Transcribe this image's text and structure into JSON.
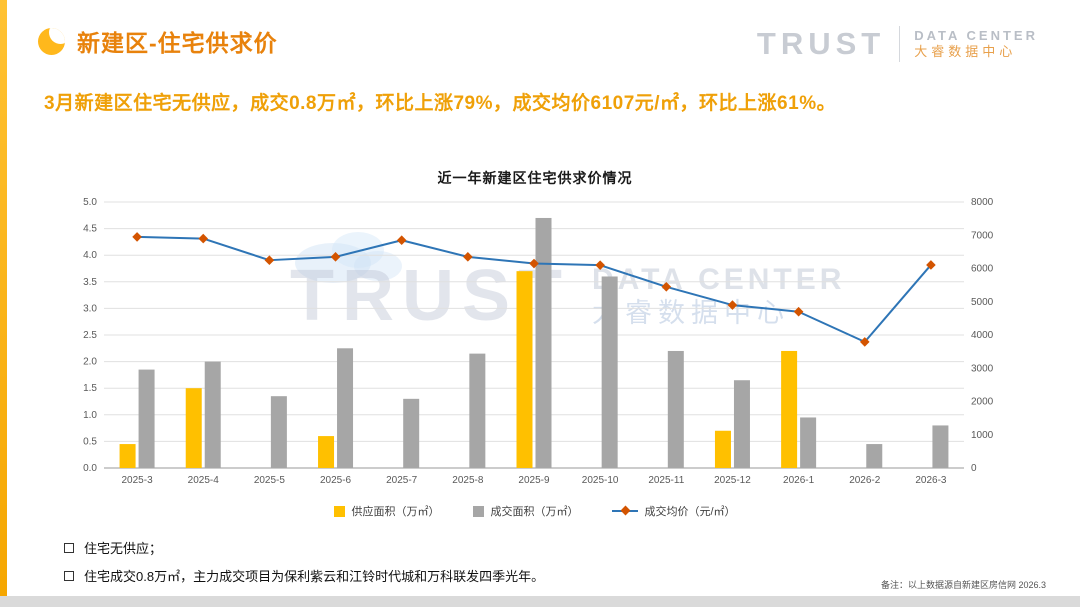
{
  "page": {
    "title": "新建区-住宅供求价",
    "logo": {
      "trust": "TRUST",
      "data_center": "DATA CENTER",
      "cn": "大睿数据中心"
    },
    "subtitle": "3月新建区住宅无供应，成交0.8万㎡，环比上涨79%，成交均价6107元/㎡，环比上涨61%。",
    "bullets": [
      "住宅无供应；",
      "住宅成交0.8万㎡，主力成交项目为保利紫云和江铃时代城和万科联发四季光年。"
    ],
    "footnote": "备注：以上数据源自新建区房信网 2026.3",
    "watermark": {
      "trust": "TRUST",
      "data_center": "DATA CENTER",
      "cn": "大睿数据中心"
    }
  },
  "colors": {
    "accent_orange": "#E8820C",
    "subtitle_gold": "#EFA008",
    "bar_supply": "#FFC000",
    "bar_deal": "#A6A6A6",
    "line_price": "#2E75B6",
    "marker_price": "#D35400",
    "grid": "#E0E0E0"
  },
  "chart_data": {
    "type": "bar",
    "combo": "grouped bars + line on secondary axis",
    "title": "近一年新建区住宅供求价情况",
    "categories": [
      "2025-3",
      "2025-4",
      "2025-5",
      "2025-6",
      "2025-7",
      "2025-8",
      "2025-9",
      "2025-10",
      "2025-11",
      "2025-12",
      "2026-1",
      "2026-2",
      "2026-3"
    ],
    "series": [
      {
        "name": "供应面积（万㎡）",
        "type": "bar",
        "axis": "left",
        "color": "#FFC000",
        "values": [
          0.45,
          1.5,
          0,
          0.6,
          0,
          0,
          3.7,
          0,
          0,
          0.7,
          2.2,
          0,
          0
        ]
      },
      {
        "name": "成交面积（万㎡）",
        "type": "bar",
        "axis": "left",
        "color": "#A6A6A6",
        "values": [
          1.85,
          2.0,
          1.35,
          2.25,
          1.3,
          2.15,
          4.7,
          3.6,
          2.2,
          1.65,
          0.95,
          0.45,
          0.8
        ]
      },
      {
        "name": "成交均价（元/㎡）",
        "type": "line",
        "axis": "right",
        "color": "#2E75B6",
        "marker_color": "#D35400",
        "values": [
          6950,
          6900,
          6250,
          6350,
          6850,
          6350,
          6150,
          6100,
          5450,
          4900,
          4700,
          3793,
          6107
        ]
      }
    ],
    "left_axis": {
      "min": 0,
      "max": 5,
      "step": 0.5,
      "label_format": "one_decimal"
    },
    "right_axis": {
      "min": 0,
      "max": 8000,
      "step": 1000
    },
    "grid": true,
    "legend_position": "bottom"
  }
}
